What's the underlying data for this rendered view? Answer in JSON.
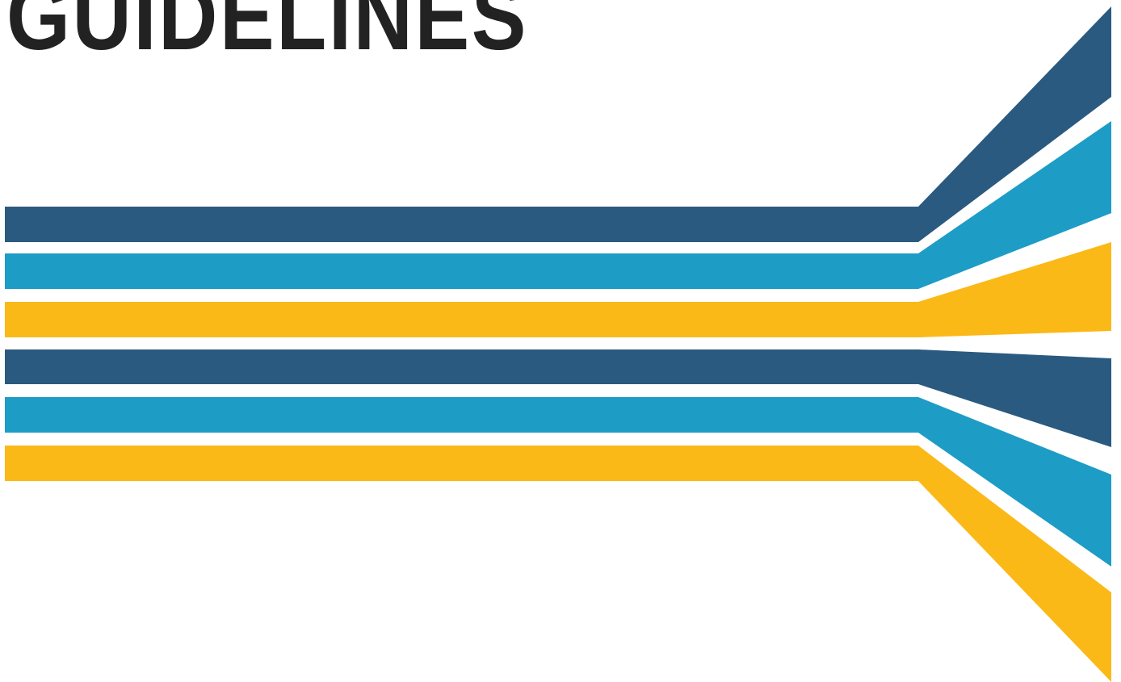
{
  "document": {
    "title": "GUIDELINES"
  },
  "artwork": {
    "name": "fanning-stripes-graphic",
    "colors": {
      "navy": "#2a5a80",
      "teal": "#1d9cc6",
      "gold": "#fbb917"
    },
    "stripes": [
      {
        "name": "stripe-navy-1",
        "color": "navy"
      },
      {
        "name": "stripe-teal-1",
        "color": "teal"
      },
      {
        "name": "stripe-gold-1",
        "color": "gold"
      },
      {
        "name": "stripe-navy-2",
        "color": "navy"
      },
      {
        "name": "stripe-teal-2",
        "color": "teal"
      },
      {
        "name": "stripe-gold-2",
        "color": "gold"
      }
    ]
  }
}
